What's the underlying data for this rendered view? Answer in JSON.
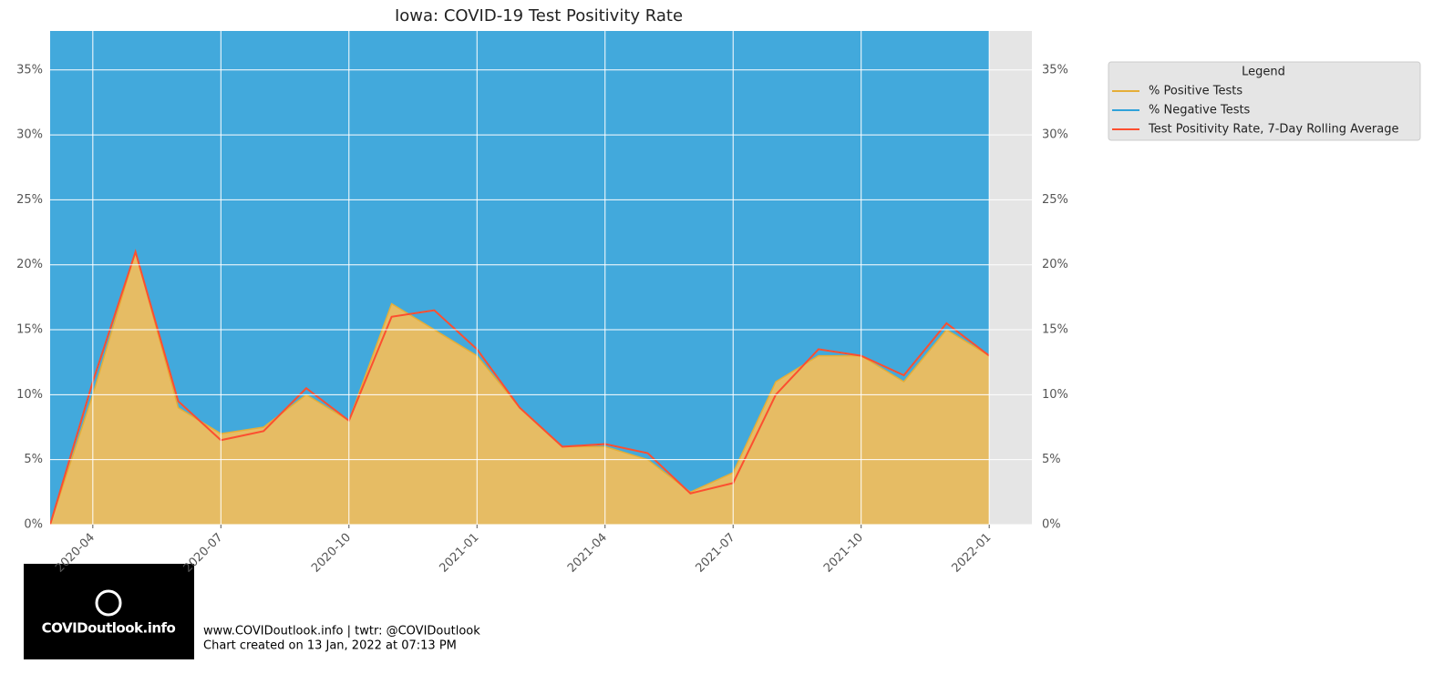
{
  "chart_data": {
    "type": "area-line",
    "title": "Iowa: COVID-19 Test Positivity Rate",
    "x": [
      "2020-03",
      "2020-04",
      "2020-05",
      "2020-06",
      "2020-07",
      "2020-08",
      "2020-09",
      "2020-10",
      "2020-11",
      "2020-12",
      "2021-01",
      "2021-02",
      "2021-03",
      "2021-04",
      "2021-05",
      "2021-06",
      "2021-07",
      "2021-08",
      "2021-09",
      "2021-10",
      "2021-11",
      "2021-12",
      "2022-01"
    ],
    "series": [
      {
        "name": "% Positive Tests",
        "color": "#e5ae38",
        "values": [
          0,
          10,
          21,
          9,
          7,
          7.5,
          10,
          8,
          17,
          15,
          13,
          9,
          6,
          6,
          5,
          2.5,
          4,
          11,
          13,
          13,
          11,
          15,
          13
        ]
      },
      {
        "name": "% Negative Tests",
        "color": "#30a2da",
        "values": [
          100,
          90,
          79,
          91,
          93,
          92.5,
          90,
          92,
          83,
          85,
          87,
          91,
          94,
          94,
          95,
          97.5,
          96,
          89,
          87,
          87,
          89,
          85,
          87
        ]
      },
      {
        "name": "Test Positivity Rate, 7-Day Rolling Average",
        "color": "#fc4f30",
        "values": [
          0,
          11,
          21,
          9.5,
          6.5,
          7.2,
          10.5,
          8,
          16,
          16.5,
          13.5,
          9,
          6,
          6.2,
          5.5,
          2.4,
          3.2,
          10,
          13.5,
          13,
          11.5,
          15.5,
          13
        ]
      }
    ],
    "xlim": [
      "2020-03",
      "2022-02"
    ],
    "xticks": [
      "2020-04",
      "2020-07",
      "2020-10",
      "2021-01",
      "2021-04",
      "2021-07",
      "2021-10",
      "2022-01"
    ],
    "ylim": [
      0,
      38
    ],
    "yticks": [
      {
        "value": 0,
        "label": "0%"
      },
      {
        "value": 5,
        "label": "5%"
      },
      {
        "value": 10,
        "label": "10%"
      },
      {
        "value": 15,
        "label": "15%"
      },
      {
        "value": 20,
        "label": "20%"
      },
      {
        "value": 25,
        "label": "25%"
      },
      {
        "value": 30,
        "label": "30%"
      },
      {
        "value": 35,
        "label": "35%"
      }
    ],
    "grid": true,
    "legend_title": "Legend",
    "legend_position": "outside-right",
    "annotations": [
      "COVIDoutlook.info",
      "www.COVIDoutlook.info | twtr: @COVIDoutlook",
      "Chart created on 13 Jan, 2022 at 07:13 PM"
    ]
  }
}
